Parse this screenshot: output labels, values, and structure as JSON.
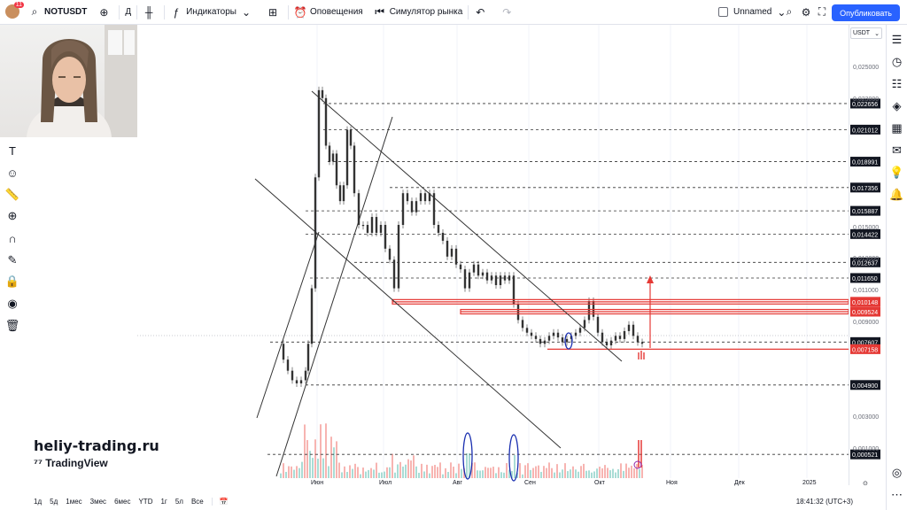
{
  "toolbar": {
    "avatar_badge": "11",
    "symbol": "NOTUSDT",
    "timeframe": "Д",
    "indicators": "Индикаторы",
    "alerts": "Оповещения",
    "replay": "Симулятор рынка",
    "layout_name": "Unnamed",
    "publish": "Опубликовать"
  },
  "price_scale": {
    "currency": "USDT",
    "ticks": [
      {
        "label": "0,025000",
        "y": 75
      },
      {
        "label": "0,023000",
        "y": 111
      },
      {
        "label": "0,015000",
        "y": 256
      },
      {
        "label": "0,013000",
        "y": 291
      },
      {
        "label": "0,011000",
        "y": 327
      },
      {
        "label": "0,009000",
        "y": 363
      },
      {
        "label": "0,003000",
        "y": 470
      },
      {
        "label": "0,001000",
        "y": 506
      }
    ],
    "levels": [
      {
        "label": "0,022656",
        "style": "dark"
      },
      {
        "label": "0,021012",
        "style": "dark"
      },
      {
        "label": "0,018991",
        "style": "dark"
      },
      {
        "label": "0,017356",
        "style": "dark"
      },
      {
        "label": "0,015887",
        "style": "dark"
      },
      {
        "label": "0,014422",
        "style": "dark"
      },
      {
        "label": "0,012637",
        "style": "dark"
      },
      {
        "label": "0,011650",
        "style": "dark"
      },
      {
        "label": "0,010148",
        "style": "red"
      },
      {
        "label": "0,009524",
        "style": "red"
      },
      {
        "label": "0,007607",
        "style": "dark"
      },
      {
        "label": "0,007158",
        "style": "red"
      },
      {
        "label": "0,004900",
        "style": "dark"
      },
      {
        "label": "0,000521",
        "style": "dark"
      }
    ]
  },
  "time_axis": [
    "Июн",
    "Июл",
    "Авг",
    "Сен",
    "Окт",
    "Ноя",
    "Дек",
    "2025"
  ],
  "bottom": {
    "ranges": [
      "1д",
      "5д",
      "1мес",
      "3мес",
      "6мес",
      "YTD",
      "1г",
      "5л",
      "Все"
    ],
    "clock": "18:41:32 (UTC+3)"
  },
  "watermark": {
    "site": "heliy-trading.ru",
    "brand": "TradingView"
  },
  "colors": {
    "accent": "#2962ff",
    "red_level": "#e53935",
    "up": "#26a69a",
    "down": "#ef5350"
  }
}
